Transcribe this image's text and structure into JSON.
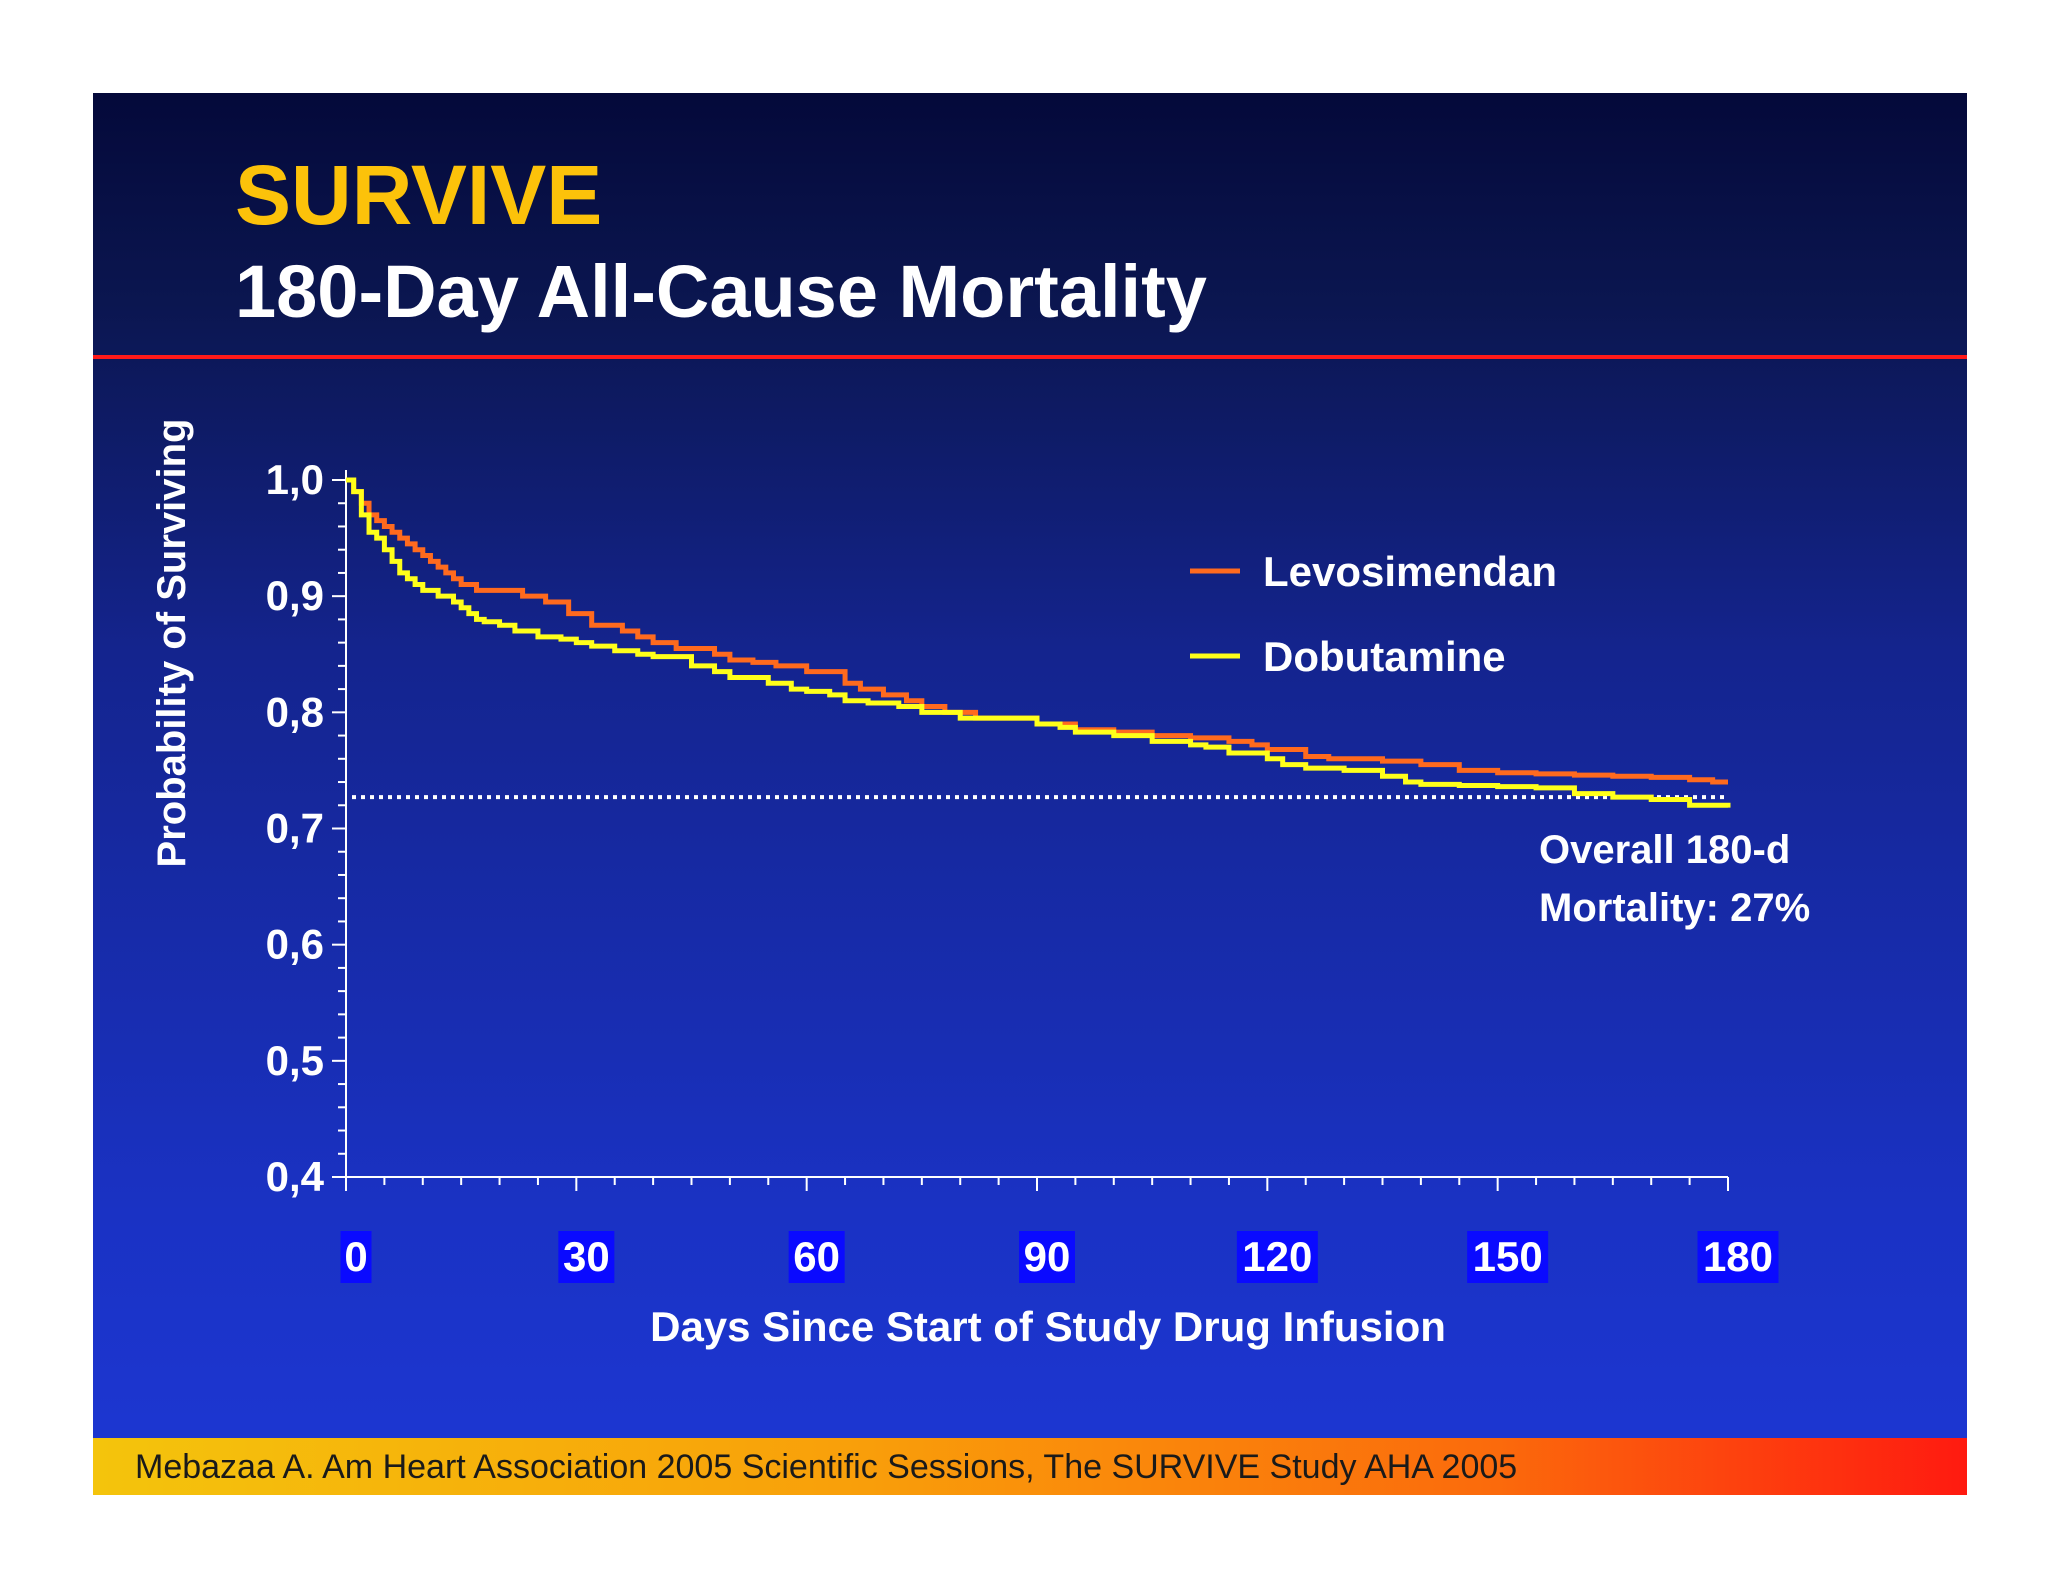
{
  "title": "SURVIVE",
  "subtitle": "180-Day All-Cause Mortality",
  "footer": "Mebazaa A. Am Heart Association 2005 Scientific Sessions, The SURVIVE Study AHA 2005",
  "annotation": [
    "Overall 180-d",
    "Mortality: 27%"
  ],
  "colors": {
    "title": "#fcc20a",
    "levosimendan": "#ff6a1e",
    "dobutamine": "#ffff1a",
    "reference_line": "#ffffff",
    "rule": "#ff1a1a"
  },
  "chart_data": {
    "type": "line",
    "step": true,
    "xlabel": "Days Since Start of Study Drug Infusion",
    "ylabel": "Probability of Surviving",
    "xlim": [
      0,
      180
    ],
    "ylim": [
      0.4,
      1.0
    ],
    "xticks": [
      "0",
      "30",
      "60",
      "90",
      "120",
      "150",
      "180"
    ],
    "yticks": [
      "0,4",
      "0,5",
      "0,6",
      "0,7",
      "0,8",
      "0,9",
      "1,0"
    ],
    "legend_position": "top-right",
    "reference_line": {
      "y": 0.727,
      "style": "dotted",
      "label": "Overall 180-d Mortality: 27%"
    },
    "series": [
      {
        "name": "Levosimendan",
        "x": [
          0,
          1,
          2,
          3,
          4,
          5,
          6,
          7,
          8,
          9,
          10,
          11,
          12,
          13,
          14,
          15,
          17,
          20,
          23,
          26,
          29,
          32,
          36,
          38,
          40,
          43,
          48,
          50,
          53,
          56,
          60,
          65,
          67,
          70,
          73,
          75,
          78,
          82,
          90,
          95,
          100,
          105,
          110,
          115,
          118,
          120,
          125,
          128,
          135,
          140,
          145,
          150,
          155,
          160,
          165,
          170,
          175,
          178,
          180
        ],
        "y": [
          1.0,
          0.99,
          0.98,
          0.97,
          0.965,
          0.96,
          0.955,
          0.95,
          0.945,
          0.94,
          0.935,
          0.93,
          0.925,
          0.92,
          0.915,
          0.91,
          0.905,
          0.905,
          0.9,
          0.895,
          0.885,
          0.875,
          0.87,
          0.865,
          0.86,
          0.855,
          0.85,
          0.845,
          0.843,
          0.84,
          0.835,
          0.825,
          0.82,
          0.815,
          0.81,
          0.805,
          0.8,
          0.795,
          0.79,
          0.785,
          0.783,
          0.78,
          0.778,
          0.775,
          0.772,
          0.768,
          0.762,
          0.76,
          0.758,
          0.755,
          0.75,
          0.748,
          0.747,
          0.746,
          0.745,
          0.744,
          0.742,
          0.74,
          0.74
        ]
      },
      {
        "name": "Dobutamine",
        "x": [
          0,
          1,
          2,
          3,
          4,
          5,
          6,
          7,
          8,
          9,
          10,
          12,
          14,
          15,
          16,
          17,
          18,
          20,
          22,
          25,
          28,
          30,
          32,
          35,
          38,
          40,
          45,
          48,
          50,
          55,
          58,
          60,
          63,
          65,
          68,
          72,
          75,
          80,
          90,
          93,
          95,
          100,
          105,
          110,
          112,
          115,
          120,
          122,
          125,
          130,
          135,
          138,
          140,
          145,
          150,
          155,
          160,
          165,
          170,
          175,
          180
        ],
        "y": [
          1.0,
          0.99,
          0.97,
          0.955,
          0.95,
          0.94,
          0.93,
          0.92,
          0.915,
          0.91,
          0.905,
          0.9,
          0.895,
          0.89,
          0.885,
          0.88,
          0.878,
          0.875,
          0.87,
          0.865,
          0.863,
          0.86,
          0.857,
          0.853,
          0.85,
          0.848,
          0.84,
          0.835,
          0.83,
          0.825,
          0.82,
          0.818,
          0.815,
          0.81,
          0.808,
          0.805,
          0.8,
          0.795,
          0.79,
          0.787,
          0.783,
          0.78,
          0.775,
          0.772,
          0.77,
          0.765,
          0.76,
          0.755,
          0.752,
          0.75,
          0.745,
          0.74,
          0.738,
          0.737,
          0.736,
          0.735,
          0.73,
          0.727,
          0.725,
          0.72,
          0.718
        ]
      }
    ]
  }
}
